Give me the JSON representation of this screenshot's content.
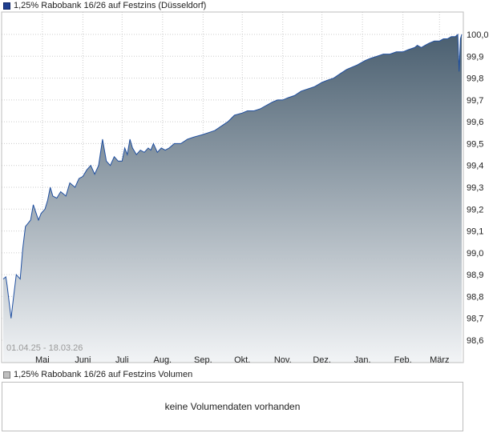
{
  "chart_data": {
    "type": "area",
    "legend": "1,25% Rabobank 16/26 auf Festzins (Düsseldorf)",
    "date_range": "01.04.25 - 18.03.26",
    "ylim": [
      98.55,
      100.03
    ],
    "y_ticks": [
      "98,6",
      "98,7",
      "98,8",
      "98,9",
      "99,0",
      "99,1",
      "99,2",
      "99,3",
      "99,4",
      "99,5",
      "99,6",
      "99,7",
      "99,8",
      "99,9",
      "100,0"
    ],
    "x_ticks": [
      "Mai",
      "Juni",
      "Juli",
      "Aug.",
      "Sep.",
      "Okt.",
      "Nov.",
      "Dez.",
      "Jan.",
      "Feb.",
      "März"
    ],
    "x_tick_values": [
      "2025-05-01",
      "2025-06-01",
      "2025-07-01",
      "2025-08-01",
      "2025-09-01",
      "2025-10-01",
      "2025-11-01",
      "2025-12-01",
      "2026-01-01",
      "2026-02-01",
      "2026-03-01"
    ],
    "x_range": [
      "2025-04-01",
      "2026-03-18"
    ],
    "grid": true,
    "legend_position": "top-left",
    "colors": {
      "line": "#1f4fa0",
      "fill_top": "#4a5f70",
      "fill_bottom": "#f2f4f6",
      "grid": "#cccccc",
      "border": "#bdbdbd"
    },
    "series": [
      {
        "x": [
          "2025-04-01",
          "2025-04-03",
          "2025-04-04",
          "2025-04-07",
          "2025-04-08",
          "2025-04-09",
          "2025-04-11",
          "2025-04-14",
          "2025-04-16",
          "2025-04-18",
          "2025-04-22",
          "2025-04-24",
          "2025-04-28",
          "2025-04-30",
          "2025-05-03",
          "2025-05-05",
          "2025-05-07",
          "2025-05-09",
          "2025-05-12",
          "2025-05-15",
          "2025-05-19",
          "2025-05-22",
          "2025-05-26",
          "2025-05-29",
          "2025-06-01",
          "2025-06-04",
          "2025-06-07",
          "2025-06-10",
          "2025-06-13",
          "2025-06-16",
          "2025-06-19",
          "2025-06-22",
          "2025-06-25",
          "2025-06-28",
          "2025-07-01",
          "2025-07-03",
          "2025-07-05",
          "2025-07-07",
          "2025-07-09",
          "2025-07-12",
          "2025-07-15",
          "2025-07-18",
          "2025-07-21",
          "2025-07-23",
          "2025-07-25",
          "2025-07-28",
          "2025-07-31",
          "2025-08-03",
          "2025-08-06",
          "2025-08-10",
          "2025-08-15",
          "2025-08-20",
          "2025-08-25",
          "2025-08-31",
          "2025-09-05",
          "2025-09-10",
          "2025-09-15",
          "2025-09-20",
          "2025-09-25",
          "2025-10-01",
          "2025-10-05",
          "2025-10-10",
          "2025-10-15",
          "2025-10-18",
          "2025-10-21",
          "2025-10-24",
          "2025-10-28",
          "2025-11-01",
          "2025-11-05",
          "2025-11-10",
          "2025-11-15",
          "2025-11-20",
          "2025-11-25",
          "2025-12-01",
          "2025-12-05",
          "2025-12-10",
          "2025-12-15",
          "2025-12-20",
          "2025-12-28",
          "2026-01-03",
          "2026-01-07",
          "2026-01-12",
          "2026-01-17",
          "2026-01-22",
          "2026-01-27",
          "2026-02-01",
          "2026-02-05",
          "2026-02-10",
          "2026-02-12",
          "2026-02-15",
          "2026-02-18",
          "2026-02-21",
          "2026-02-25",
          "2026-03-01",
          "2026-03-04",
          "2026-03-07",
          "2026-03-10",
          "2026-03-13",
          "2026-03-15",
          "2026-03-16",
          "2026-03-17",
          "2026-03-18"
        ],
        "values": [
          98.88,
          98.89,
          98.85,
          98.7,
          98.75,
          98.8,
          98.9,
          98.88,
          99.02,
          99.12,
          99.15,
          99.22,
          99.15,
          99.18,
          99.2,
          99.24,
          99.3,
          99.26,
          99.25,
          99.28,
          99.26,
          99.32,
          99.3,
          99.34,
          99.35,
          99.38,
          99.4,
          99.36,
          99.4,
          99.52,
          99.42,
          99.4,
          99.44,
          99.42,
          99.42,
          99.48,
          99.45,
          99.52,
          99.48,
          99.45,
          99.47,
          99.46,
          99.48,
          99.47,
          99.5,
          99.46,
          99.48,
          99.47,
          99.48,
          99.5,
          99.5,
          99.52,
          99.53,
          99.54,
          99.55,
          99.56,
          99.58,
          99.6,
          99.63,
          99.64,
          99.65,
          99.65,
          99.66,
          99.67,
          99.68,
          99.69,
          99.7,
          99.7,
          99.71,
          99.72,
          99.74,
          99.75,
          99.76,
          99.78,
          99.79,
          99.8,
          99.82,
          99.84,
          99.86,
          99.88,
          99.89,
          99.9,
          99.91,
          99.91,
          99.92,
          99.92,
          99.93,
          99.94,
          99.95,
          99.94,
          99.95,
          99.96,
          99.97,
          99.97,
          99.98,
          99.98,
          99.99,
          99.99,
          100.0,
          99.83,
          99.98,
          100.0
        ]
      }
    ]
  },
  "volume": {
    "legend": "1,25% Rabobank 16/26 auf Festzins Volumen",
    "message": "keine Volumendaten vorhanden"
  }
}
